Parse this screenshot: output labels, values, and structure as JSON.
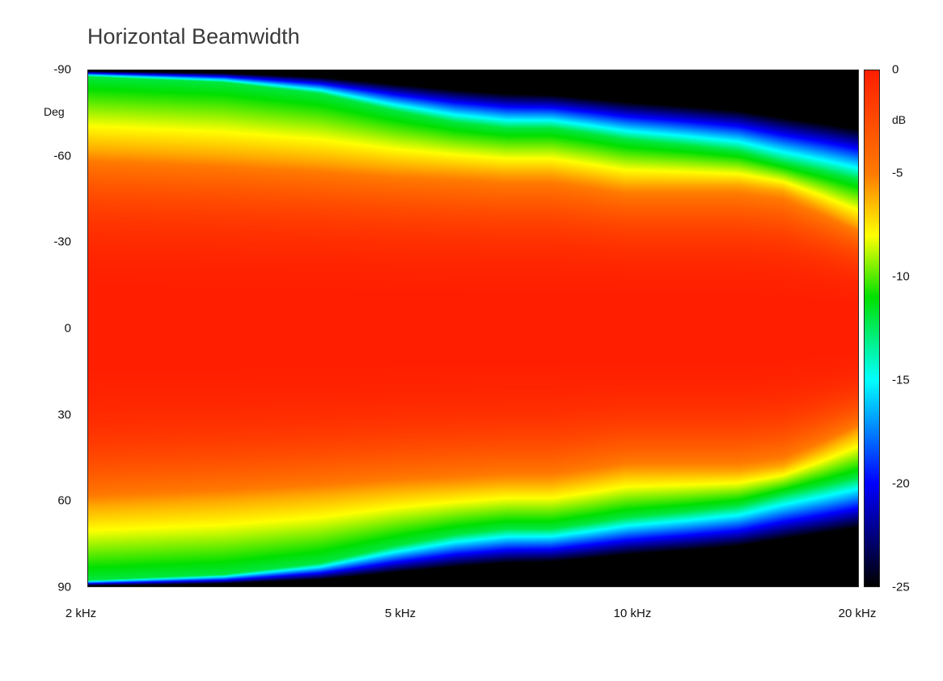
{
  "chart_data": {
    "type": "heatmap",
    "title": "Horizontal Beamwidth",
    "ylabel": "Deg",
    "colorbar_label": "dB",
    "x_scale": "log",
    "x_tick_labels": [
      "2 kHz",
      "5 kHz",
      "10 kHz",
      "20 kHz"
    ],
    "x_tick_values_hz": [
      2000,
      5000,
      10000,
      20000
    ],
    "y_tick_labels": [
      "-90",
      "-60",
      "-30",
      "0",
      "30",
      "60",
      "90"
    ],
    "y_tick_values": [
      -90,
      -60,
      -30,
      0,
      30,
      60,
      90
    ],
    "colorbar_tick_labels": [
      "0",
      "-5",
      "-10",
      "-15",
      "-20",
      "-25"
    ],
    "colorbar_tick_values": [
      0,
      -5,
      -10,
      -15,
      -20,
      -25
    ],
    "xlim_hz": [
      2000,
      20000
    ],
    "ylim_deg": [
      -90,
      90
    ],
    "zlim_db": [
      -25,
      0
    ],
    "colormap": [
      "#ff1e00",
      "#ff7a00",
      "#ffff00",
      "#00e000",
      "#00ffff",
      "#0000ff",
      "#000000"
    ],
    "beamwidth_contours": {
      "freq_hz": [
        2000,
        3000,
        4000,
        5000,
        6000,
        7000,
        8000,
        9000,
        10000,
        12000,
        14000,
        16000,
        18000,
        20000
      ],
      "minus6db_half_angle_deg": [
        62,
        60,
        58,
        56,
        55,
        54,
        54,
        52,
        50,
        50,
        50,
        48,
        42,
        36
      ],
      "minus12db_half_angle_deg": [
        88,
        86,
        82,
        76,
        72,
        70,
        70,
        68,
        66,
        64,
        62,
        58,
        55,
        52
      ]
    }
  }
}
